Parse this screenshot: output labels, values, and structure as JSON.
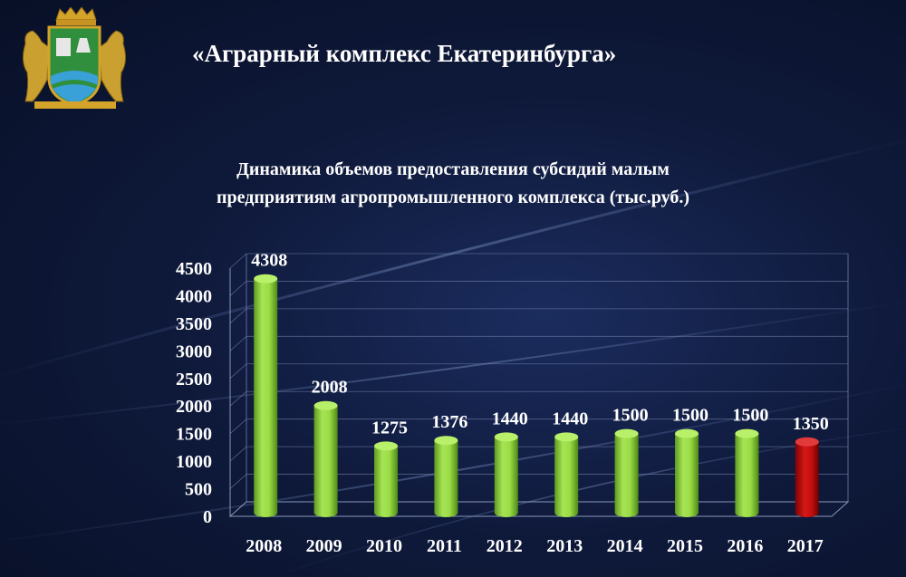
{
  "header": {
    "title": "«Аграрный комплекс Екатеринбурга»"
  },
  "logo": {
    "name": "ekaterinburg-coat-of-arms"
  },
  "colors": {
    "bar_green": "#8fd13f",
    "bar_red": "#c41010",
    "text": "#ffffff"
  },
  "chart_data": {
    "type": "bar",
    "title": "Динамика объемов предоставления субсидий малым предприятиям агропромышленного комплекса (тыс.руб.)",
    "categories": [
      "2008",
      "2009",
      "2010",
      "2011",
      "2012",
      "2013",
      "2014",
      "2015",
      "2016",
      "2017"
    ],
    "values": [
      4308,
      2008,
      1275,
      1376,
      1440,
      1440,
      1500,
      1500,
      1500,
      1350
    ],
    "labels": [
      "4308",
      "2008",
      "1275",
      "1376",
      "1440",
      "1440",
      "1500",
      "1500",
      "1500",
      "1350"
    ],
    "highlight_last": true,
    "yticks": [
      "0",
      "500",
      "1000",
      "1500",
      "2000",
      "2500",
      "3000",
      "3500",
      "4000",
      "4500"
    ],
    "ylim": [
      0,
      4500
    ],
    "grid": true,
    "xlabel": "",
    "ylabel": ""
  }
}
